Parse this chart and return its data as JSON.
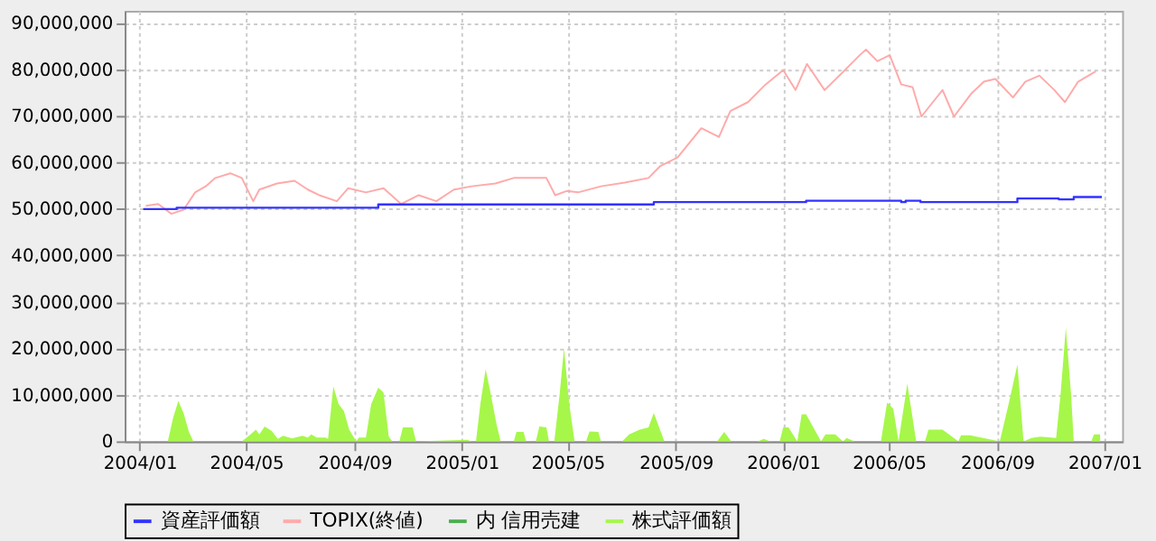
{
  "chart_data": {
    "type": "line",
    "xlim": [
      "2003-12-15",
      "2007-01-21"
    ],
    "xticks": [
      {
        "value": "2004-01-01",
        "label": "2004/01"
      },
      {
        "value": "2004-05-01",
        "label": "2004/05"
      },
      {
        "value": "2004-09-01",
        "label": "2004/09"
      },
      {
        "value": "2005-01-01",
        "label": "2005/01"
      },
      {
        "value": "2005-05-01",
        "label": "2005/05"
      },
      {
        "value": "2005-09-01",
        "label": "2005/09"
      },
      {
        "value": "2006-01-01",
        "label": "2006/01"
      },
      {
        "value": "2006-05-01",
        "label": "2006/05"
      },
      {
        "value": "2006-09-01",
        "label": "2006/09"
      },
      {
        "value": "2007-01-01",
        "label": "2007/01"
      }
    ],
    "ylim": [
      0,
      92500000
    ],
    "yticks": [
      0,
      {
        "value": 10000000,
        "label": "10,000,000"
      },
      {
        "value": 20000000,
        "label": "20,000,000"
      },
      {
        "value": 30000000,
        "label": "30,000,000"
      },
      {
        "value": 40000000,
        "label": "40,000,000"
      },
      {
        "value": 50000000,
        "label": "50,000,000"
      },
      {
        "value": 60000000,
        "label": "60,000,000"
      },
      {
        "value": 70000000,
        "label": "70,000,000"
      },
      {
        "value": 80000000,
        "label": "80,000,000"
      },
      {
        "value": 90000000,
        "label": "90,000,000"
      }
    ],
    "grid": true,
    "legend": "bottom",
    "series": [
      {
        "name": "資産評価額",
        "type": "step",
        "color": "#3333ff",
        "x": [
          "2004-01-05",
          "2004-02-12",
          "2004-09-28",
          "2005-08-07",
          "2006-01-27",
          "2006-05-15",
          "2006-05-20",
          "2006-06-06",
          "2006-09-24",
          "2006-11-10",
          "2006-11-27",
          "2006-12-29"
        ],
        "values": [
          49900000,
          50200000,
          50900000,
          51400000,
          51700000,
          51400000,
          51700000,
          51400000,
          52200000,
          52000000,
          52500000,
          52500000
        ]
      },
      {
        "name": "TOPIX(終値)",
        "color": "#ffaaaa",
        "x": [
          "2004-01-08",
          "2004-01-22",
          "2004-02-06",
          "2004-02-20",
          "2004-03-04",
          "2004-03-16",
          "2004-03-27",
          "2004-04-13",
          "2004-04-26",
          "2004-05-09",
          "2004-05-16",
          "2004-06-05",
          "2004-06-25",
          "2004-07-10",
          "2004-07-23",
          "2004-08-12",
          "2004-08-25",
          "2004-09-14",
          "2004-10-04",
          "2004-10-24",
          "2004-11-13",
          "2004-12-03",
          "2004-12-23",
          "2005-01-12",
          "2005-02-08",
          "2005-03-01",
          "2005-03-21",
          "2005-04-07",
          "2005-04-17",
          "2005-04-30",
          "2005-05-13",
          "2005-06-08",
          "2005-07-05",
          "2005-08-01",
          "2005-08-14",
          "2005-09-03",
          "2005-09-30",
          "2005-10-20",
          "2005-11-02",
          "2005-11-22",
          "2005-12-12",
          "2006-01-01",
          "2006-01-15",
          "2006-01-28",
          "2006-02-17",
          "2006-03-09",
          "2006-03-29",
          "2006-04-05",
          "2006-04-18",
          "2006-05-02",
          "2006-05-15",
          "2006-05-28",
          "2006-06-07",
          "2006-06-20",
          "2006-07-01",
          "2006-07-14",
          "2006-08-03",
          "2006-08-17",
          "2006-08-30",
          "2006-09-19",
          "2006-10-03",
          "2006-10-19",
          "2006-11-05",
          "2006-11-17",
          "2006-12-02",
          "2006-12-22"
        ],
        "values": [
          50600000,
          51000000,
          48900000,
          49800000,
          53500000,
          54800000,
          56600000,
          57600000,
          56600000,
          51600000,
          54100000,
          55400000,
          56000000,
          54100000,
          52900000,
          51600000,
          54400000,
          53500000,
          54400000,
          51000000,
          52900000,
          51600000,
          54100000,
          54800000,
          55400000,
          56600000,
          56600000,
          56600000,
          52900000,
          53800000,
          53500000,
          54800000,
          55600000,
          56600000,
          59100000,
          61000000,
          67300000,
          65400000,
          71000000,
          72900000,
          76700000,
          79800000,
          75500000,
          81100000,
          75500000,
          79200000,
          83000000,
          84200000,
          81700000,
          83000000,
          76700000,
          76100000,
          69800000,
          72900000,
          75500000,
          69800000,
          74800000,
          77300000,
          77900000,
          73900000,
          77300000,
          78600000,
          75500000,
          72900000,
          77300000,
          79500000
        ]
      },
      {
        "name": "内 信用売建",
        "type": "area",
        "color": "#4caf50"
      },
      {
        "name": "株式評価額",
        "type": "area",
        "color": "#a6f74a",
        "x": [
          "2004-01-05",
          "2004-02-02",
          "2004-02-08",
          "2004-02-14",
          "2004-02-20",
          "2004-02-26",
          "2004-03-02",
          "2004-04-26",
          "2004-05-06",
          "2004-05-12",
          "2004-05-16",
          "2004-05-22",
          "2004-05-30",
          "2004-06-06",
          "2004-06-12",
          "2004-06-22",
          "2004-07-04",
          "2004-07-10",
          "2004-07-14",
          "2004-07-20",
          "2004-07-30",
          "2004-08-02",
          "2004-08-08",
          "2004-08-14",
          "2004-08-20",
          "2004-08-26",
          "2004-09-03",
          "2004-09-06",
          "2004-09-14",
          "2004-09-20",
          "2004-09-28",
          "2004-10-04",
          "2004-10-10",
          "2004-10-14",
          "2004-10-22",
          "2004-10-26",
          "2004-11-06",
          "2004-11-10",
          "2005-01-07",
          "2005-01-12",
          "2005-01-17",
          "2005-01-22",
          "2005-01-28",
          "2005-02-03",
          "2005-02-09",
          "2005-02-14",
          "2005-03-01",
          "2005-03-04",
          "2005-03-12",
          "2005-03-15",
          "2005-03-26",
          "2005-03-30",
          "2005-04-07",
          "2005-04-10",
          "2005-04-16",
          "2005-04-22",
          "2005-04-27",
          "2005-05-03",
          "2005-05-09",
          "2005-05-22",
          "2005-05-26",
          "2005-06-05",
          "2005-06-08",
          "2005-07-02",
          "2005-07-10",
          "2005-07-22",
          "2005-08-01",
          "2005-08-07",
          "2005-08-19",
          "2005-10-18",
          "2005-10-26",
          "2005-11-03",
          "2005-12-03",
          "2005-12-10",
          "2005-12-17",
          "2005-12-28",
          "2006-01-01",
          "2006-01-07",
          "2006-01-17",
          "2006-01-22",
          "2006-01-27",
          "2006-02-13",
          "2006-02-18",
          "2006-03-01",
          "2006-03-10",
          "2006-03-14",
          "2006-03-23",
          "2006-04-22",
          "2006-04-29",
          "2006-05-06",
          "2006-05-12",
          "2006-05-22",
          "2006-06-01",
          "2006-06-11",
          "2006-06-15",
          "2006-07-01",
          "2006-07-19",
          "2006-07-22",
          "2006-08-01",
          "2006-09-04",
          "2006-09-14",
          "2006-09-24",
          "2006-10-01",
          "2006-10-10",
          "2006-10-20",
          "2006-11-07",
          "2006-11-12",
          "2006-11-18",
          "2006-11-24",
          "2006-11-27",
          "2006-12-17",
          "2006-12-20",
          "2006-12-27"
        ],
        "values": [
          0,
          0,
          5000000,
          8700000,
          6000000,
          2000000,
          0,
          0,
          1500000,
          2500000,
          1500000,
          3200000,
          2200000,
          500000,
          1200000,
          600000,
          1200000,
          800000,
          1500000,
          800000,
          800000,
          500000,
          11800000,
          8000000,
          6500000,
          2500000,
          0,
          800000,
          800000,
          8000000,
          11500000,
          10500000,
          1000000,
          0,
          0,
          3000000,
          3000000,
          0,
          300000,
          0,
          0,
          8000000,
          15500000,
          10000000,
          4000000,
          0,
          0,
          2000000,
          2000000,
          0,
          0,
          3200000,
          3000000,
          0,
          0,
          10000000,
          20000000,
          8000000,
          0,
          0,
          2100000,
          2000000,
          0,
          0,
          1500000,
          2500000,
          3000000,
          6100000,
          0,
          0,
          2000000,
          0,
          0,
          500000,
          0,
          0,
          3000000,
          3000000,
          0,
          5800000,
          5800000,
          0,
          1500000,
          1500000,
          0,
          700000,
          0,
          0,
          8300000,
          7000000,
          0,
          12400000,
          0,
          0,
          2500000,
          2500000,
          0,
          1300000,
          1300000,
          0,
          8000000,
          16500000,
          0,
          700000,
          1000000,
          700000,
          10000000,
          24400000,
          10000000,
          0,
          0,
          1500000,
          1500000
        ]
      }
    ]
  }
}
